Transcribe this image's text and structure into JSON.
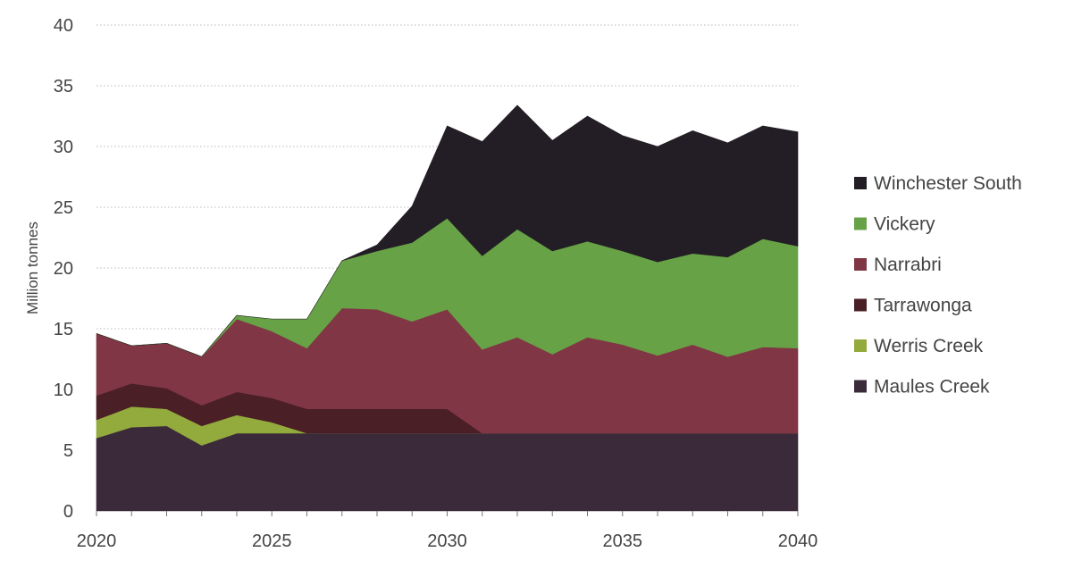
{
  "chart_data": {
    "type": "area",
    "stacked": true,
    "title": "",
    "xlabel": "",
    "ylabel": "Million tonnes",
    "xlim": [
      2020,
      2040
    ],
    "ylim": [
      0,
      40
    ],
    "x_ticks": [
      "2020",
      "2025",
      "2030",
      "2035",
      "2040"
    ],
    "y_ticks": [
      "0",
      "5",
      "10",
      "15",
      "20",
      "25",
      "30",
      "35",
      "40"
    ],
    "grid": "horizontal dotted",
    "legend_position": "right",
    "x": [
      2020,
      2021,
      2022,
      2023,
      2024,
      2025,
      2026,
      2027,
      2028,
      2029,
      2030,
      2031,
      2032,
      2033,
      2034,
      2035,
      2036,
      2037,
      2038,
      2039,
      2040
    ],
    "series": [
      {
        "name": "Maules Creek",
        "color": "#3b2b3a",
        "values": [
          6.0,
          6.9,
          7.0,
          5.4,
          6.4,
          6.4,
          6.4,
          6.4,
          6.4,
          6.4,
          6.4,
          6.4,
          6.4,
          6.4,
          6.4,
          6.4,
          6.4,
          6.4,
          6.4,
          6.4,
          6.4
        ]
      },
      {
        "name": "Werris Creek",
        "color": "#93aa3c",
        "values": [
          1.5,
          1.7,
          1.4,
          1.6,
          1.5,
          0.9,
          0,
          0,
          0,
          0,
          0,
          0,
          0,
          0,
          0,
          0,
          0,
          0,
          0,
          0,
          0
        ]
      },
      {
        "name": "Tarrawonga",
        "color": "#4a1f26",
        "values": [
          2.0,
          1.9,
          1.7,
          1.7,
          1.9,
          2.0,
          2.0,
          2.0,
          2.0,
          2.0,
          2.0,
          0,
          0,
          0,
          0,
          0,
          0,
          0,
          0,
          0,
          0
        ]
      },
      {
        "name": "Narrabri",
        "color": "#803644",
        "values": [
          5.1,
          3.1,
          3.7,
          4.0,
          6.0,
          5.5,
          5.0,
          8.3,
          8.2,
          7.2,
          8.2,
          6.9,
          7.9,
          6.5,
          7.9,
          7.3,
          6.4,
          7.3,
          6.3,
          7.1,
          7.0
        ]
      },
      {
        "name": "Vickery",
        "color": "#67a246",
        "values": [
          0,
          0,
          0,
          0,
          0.3,
          1.0,
          2.4,
          3.9,
          4.8,
          6.5,
          7.5,
          7.7,
          8.9,
          8.5,
          7.9,
          7.7,
          7.7,
          7.5,
          8.2,
          8.9,
          8.4
        ]
      },
      {
        "name": "Winchester South",
        "color": "#231e25",
        "values": [
          0,
          0,
          0,
          0,
          0,
          0,
          0,
          0,
          0.5,
          3.0,
          7.6,
          9.4,
          10.2,
          9.1,
          10.3,
          9.5,
          9.5,
          10.1,
          9.4,
          9.3,
          9.4
        ]
      }
    ]
  }
}
